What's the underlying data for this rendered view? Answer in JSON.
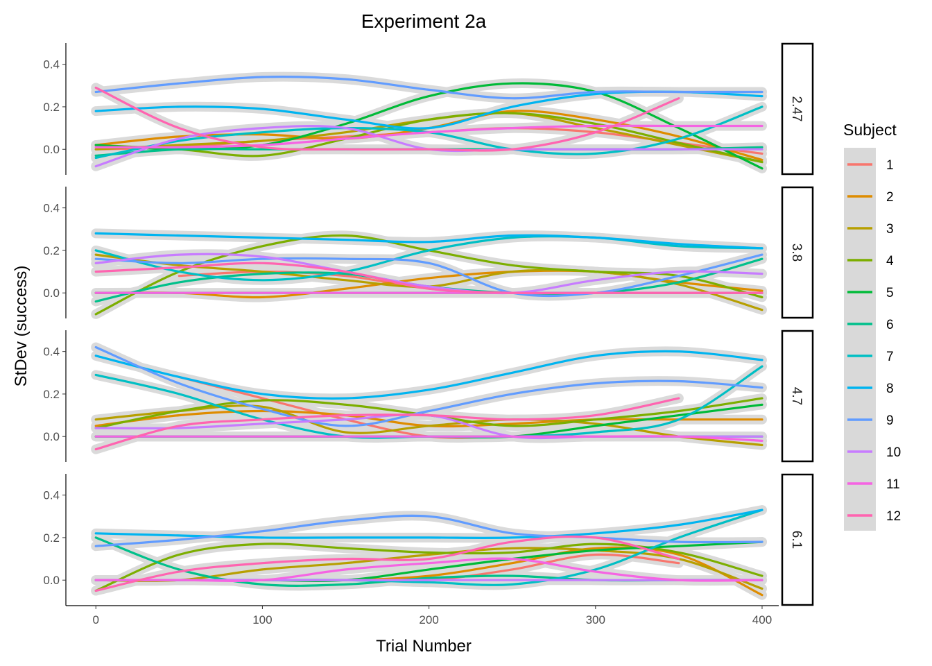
{
  "chart_data": {
    "type": "line",
    "title": "Experiment 2a",
    "xlabel": "Trial Number",
    "ylabel": "StDev (success)",
    "xlim": [
      -18,
      410
    ],
    "ylim": [
      -0.12,
      0.5
    ],
    "xticks": [
      0,
      100,
      200,
      300,
      400
    ],
    "yticks": [
      0.0,
      0.2,
      0.4
    ],
    "ytick_labels": [
      "0.0",
      "0.2",
      "0.4"
    ],
    "grid": false,
    "smoothed": true,
    "confidence_band_color": "#bdbdbd",
    "legend": {
      "title": "Subject",
      "placement": "right"
    },
    "x": [
      0,
      50,
      100,
      150,
      200,
      250,
      300,
      350,
      400
    ],
    "series_colors": {
      "1": "#F8766D",
      "2": "#DE8C00",
      "3": "#B79F00",
      "4": "#7CAE00",
      "5": "#00BA38",
      "6": "#00C08B",
      "7": "#00BFC4",
      "8": "#00B4F0",
      "9": "#619CFF",
      "10": "#C77CFF",
      "11": "#F564E3",
      "12": "#FF64B0"
    },
    "panels": [
      {
        "label": "2.47",
        "series": [
          {
            "name": "1",
            "values": [
              0.0,
              0.01,
              0.04,
              0.06,
              0.08,
              0.1,
              0.08,
              0.03,
              -0.02
            ]
          },
          {
            "name": "2",
            "values": [
              0.02,
              0.06,
              0.07,
              0.05,
              0.1,
              0.18,
              0.14,
              0.06,
              -0.05
            ]
          },
          {
            "name": "3",
            "values": [
              0.0,
              0.02,
              0.04,
              0.08,
              0.14,
              0.17,
              0.1,
              0.02,
              -0.06
            ]
          },
          {
            "name": "4",
            "values": [
              0.02,
              0.0,
              -0.03,
              0.05,
              0.14,
              0.17,
              0.12,
              0.03,
              -0.06
            ]
          },
          {
            "name": "5",
            "values": [
              0.02,
              0.0,
              0.02,
              0.12,
              0.25,
              0.31,
              0.27,
              0.1,
              -0.09
            ]
          },
          {
            "name": "6",
            "values": [
              -0.03,
              0.0,
              0.0,
              0.0,
              0.0,
              0.0,
              0.0,
              0.0,
              0.01
            ]
          },
          {
            "name": "7",
            "values": [
              -0.04,
              0.04,
              0.08,
              0.1,
              0.08,
              0.0,
              -0.02,
              0.05,
              0.2
            ]
          },
          {
            "name": "8",
            "values": [
              0.18,
              0.2,
              0.19,
              0.14,
              0.1,
              0.2,
              0.26,
              0.27,
              0.25
            ]
          },
          {
            "name": "9",
            "values": [
              0.27,
              0.31,
              0.34,
              0.33,
              0.28,
              0.24,
              0.27,
              0.27,
              0.27
            ]
          },
          {
            "name": "10",
            "values": [
              -0.08,
              0.05,
              0.1,
              0.1,
              0.0,
              0.0,
              0.0,
              0.0,
              0.0
            ]
          },
          {
            "name": "11",
            "values": [
              0.01,
              0.01,
              0.02,
              0.05,
              0.08,
              0.1,
              0.11,
              0.11,
              0.11
            ]
          },
          {
            "name": "12",
            "values": [
              0.29,
              0.1,
              0.01,
              0.0,
              0.0,
              0.0,
              0.08,
              0.24,
              null
            ]
          }
        ]
      },
      {
        "label": "3.8",
        "series": [
          {
            "name": "1",
            "values": [
              null,
              0.08,
              0.1,
              0.08,
              0.02,
              0.0,
              0.0,
              0.0,
              0.0
            ]
          },
          {
            "name": "2",
            "values": [
              0.0,
              0.0,
              -0.02,
              0.02,
              0.07,
              0.1,
              0.1,
              0.05,
              0.01
            ]
          },
          {
            "name": "3",
            "values": [
              0.18,
              0.13,
              0.1,
              0.06,
              0.03,
              0.1,
              0.1,
              0.04,
              -0.08
            ]
          },
          {
            "name": "4",
            "values": [
              -0.1,
              0.1,
              0.22,
              0.27,
              0.2,
              0.13,
              0.1,
              0.08,
              -0.02
            ]
          },
          {
            "name": "5",
            "values": [
              0.0,
              0.0,
              0.0,
              0.0,
              0.0,
              0.0,
              0.0,
              0.0,
              0.0
            ]
          },
          {
            "name": "6",
            "values": [
              -0.04,
              0.05,
              0.09,
              0.09,
              0.03,
              0.0,
              0.0,
              0.05,
              0.16
            ]
          },
          {
            "name": "7",
            "values": [
              0.2,
              0.1,
              0.06,
              0.1,
              0.2,
              0.26,
              0.26,
              0.22,
              0.21
            ]
          },
          {
            "name": "8",
            "values": [
              0.28,
              0.27,
              0.26,
              0.25,
              0.24,
              0.27,
              0.26,
              0.23,
              0.21
            ]
          },
          {
            "name": "9",
            "values": [
              0.16,
              0.14,
              0.16,
              0.16,
              0.14,
              0.0,
              0.0,
              0.08,
              0.18
            ]
          },
          {
            "name": "10",
            "values": [
              0.14,
              0.18,
              0.17,
              0.1,
              0.03,
              0.0,
              0.06,
              0.1,
              0.09
            ]
          },
          {
            "name": "11",
            "values": [
              0.0,
              0.0,
              0.0,
              0.0,
              0.0,
              0.0,
              0.0,
              0.0,
              0.0
            ]
          },
          {
            "name": "12",
            "values": [
              0.1,
              0.12,
              0.14,
              0.1,
              0.02,
              0.0,
              0.0,
              0.0,
              0.0
            ]
          }
        ]
      },
      {
        "label": "4.7",
        "series": [
          {
            "name": "1",
            "values": [
              null,
              0.28,
              0.18,
              0.08,
              0.0,
              0.0,
              0.0,
              null,
              null
            ]
          },
          {
            "name": "2",
            "values": [
              0.05,
              0.1,
              0.12,
              0.1,
              0.05,
              0.06,
              0.08,
              0.08,
              0.08
            ]
          },
          {
            "name": "3",
            "values": [
              0.08,
              0.12,
              0.14,
              0.02,
              0.05,
              0.08,
              0.06,
              0.0,
              -0.04
            ]
          },
          {
            "name": "4",
            "values": [
              0.04,
              0.12,
              0.17,
              0.15,
              0.1,
              0.05,
              0.08,
              0.12,
              0.18
            ]
          },
          {
            "name": "5",
            "values": [
              0.0,
              0.0,
              0.0,
              0.0,
              0.0,
              0.0,
              0.05,
              0.1,
              0.15
            ]
          },
          {
            "name": "6",
            "values": [
              0.0,
              0.0,
              0.0,
              0.0,
              0.0,
              0.0,
              0.0,
              0.0,
              0.0
            ]
          },
          {
            "name": "7",
            "values": [
              0.29,
              0.2,
              0.08,
              0.0,
              0.0,
              0.0,
              0.02,
              0.08,
              0.33
            ]
          },
          {
            "name": "8",
            "values": [
              0.38,
              0.28,
              0.2,
              0.18,
              0.22,
              0.3,
              0.38,
              0.4,
              0.36
            ]
          },
          {
            "name": "9",
            "values": [
              0.42,
              0.25,
              0.13,
              0.05,
              0.12,
              0.2,
              0.25,
              0.26,
              0.23
            ]
          },
          {
            "name": "10",
            "values": [
              0.04,
              0.04,
              0.06,
              0.08,
              0.1,
              0.0,
              0.0,
              0.0,
              0.0
            ]
          },
          {
            "name": "11",
            "values": [
              0.0,
              0.0,
              0.0,
              0.0,
              0.0,
              0.0,
              0.0,
              0.0,
              -0.02
            ]
          },
          {
            "name": "12",
            "values": [
              -0.06,
              0.05,
              0.08,
              0.1,
              0.1,
              0.08,
              0.1,
              0.18,
              null
            ]
          }
        ]
      },
      {
        "label": "6.1",
        "series": [
          {
            "name": "1",
            "values": [
              0.0,
              0.0,
              0.0,
              0.0,
              0.0,
              0.05,
              0.12,
              0.08,
              null
            ]
          },
          {
            "name": "2",
            "values": [
              0.0,
              0.0,
              0.0,
              0.0,
              0.02,
              0.08,
              0.15,
              0.12,
              -0.07
            ]
          },
          {
            "name": "3",
            "values": [
              0.0,
              0.0,
              0.05,
              0.08,
              0.12,
              0.15,
              0.14,
              0.1,
              -0.04
            ]
          },
          {
            "name": "4",
            "values": [
              -0.05,
              0.12,
              0.17,
              0.15,
              0.13,
              0.13,
              0.17,
              0.13,
              0.02
            ]
          },
          {
            "name": "5",
            "values": [
              0.0,
              0.0,
              0.0,
              0.0,
              0.05,
              0.1,
              0.14,
              0.16,
              0.18
            ]
          },
          {
            "name": "6",
            "values": [
              0.2,
              0.05,
              -0.02,
              -0.02,
              0.01,
              0.02,
              0.0,
              0.0,
              0.0
            ]
          },
          {
            "name": "7",
            "values": [
              0.0,
              0.0,
              0.0,
              0.0,
              -0.01,
              -0.02,
              0.05,
              0.2,
              0.33
            ]
          },
          {
            "name": "8",
            "values": [
              0.22,
              0.21,
              0.2,
              0.2,
              0.2,
              0.2,
              0.22,
              0.26,
              0.33
            ]
          },
          {
            "name": "9",
            "values": [
              0.16,
              0.19,
              0.23,
              0.28,
              0.3,
              0.22,
              0.2,
              0.18,
              0.18
            ]
          },
          {
            "name": "10",
            "values": [
              0.0,
              0.0,
              0.0,
              0.0,
              0.0,
              0.0,
              0.0,
              0.0,
              0.0
            ]
          },
          {
            "name": "11",
            "values": [
              0.0,
              0.0,
              0.0,
              0.05,
              0.08,
              0.1,
              0.04,
              0.0,
              0.0
            ]
          },
          {
            "name": "12",
            "values": [
              -0.05,
              0.04,
              0.08,
              0.1,
              0.1,
              0.18,
              0.2,
              0.1,
              null
            ]
          }
        ]
      }
    ]
  }
}
